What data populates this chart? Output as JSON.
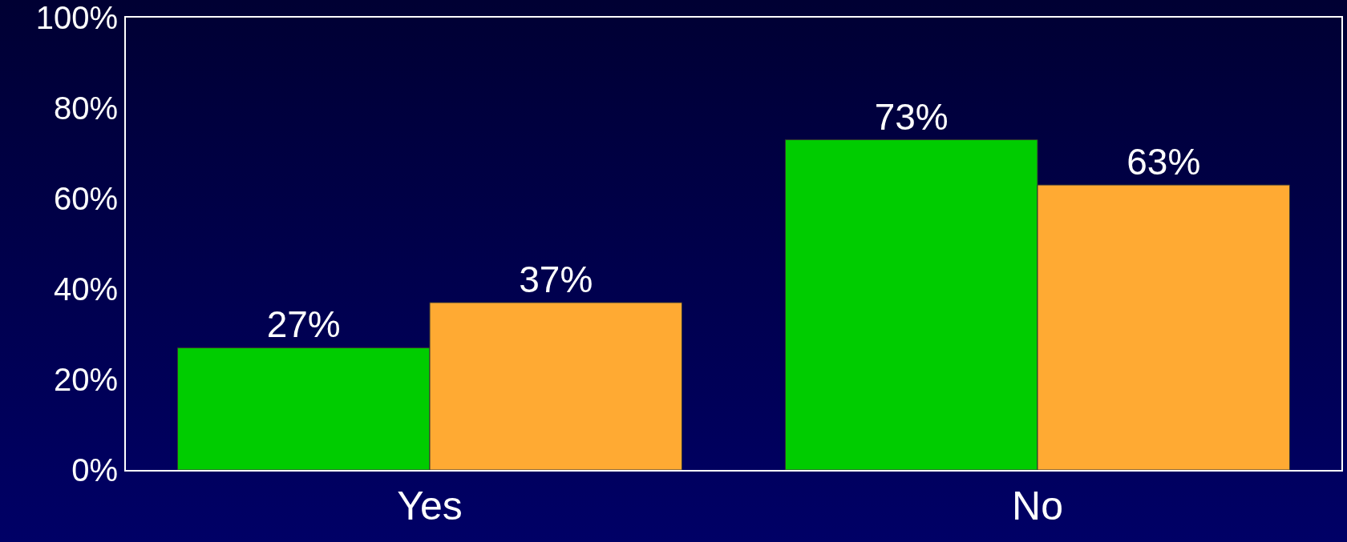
{
  "chart_data": {
    "type": "bar",
    "categories": [
      "Yes",
      "No"
    ],
    "series": [
      {
        "color": "#00cc00",
        "values": [
          27,
          73
        ],
        "value_labels": [
          "27%",
          "73%"
        ]
      },
      {
        "color": "#ffaa33",
        "values": [
          37,
          63
        ],
        "value_labels": [
          "37%",
          "63%"
        ]
      }
    ],
    "ylim": [
      0,
      100
    ],
    "yticks": [
      {
        "value": 0,
        "label": "0%"
      },
      {
        "value": 20,
        "label": "20%"
      },
      {
        "value": 40,
        "label": "40%"
      },
      {
        "value": 60,
        "label": "60%"
      },
      {
        "value": 80,
        "label": "80%"
      },
      {
        "value": 100,
        "label": "100%"
      }
    ],
    "grid": false
  }
}
